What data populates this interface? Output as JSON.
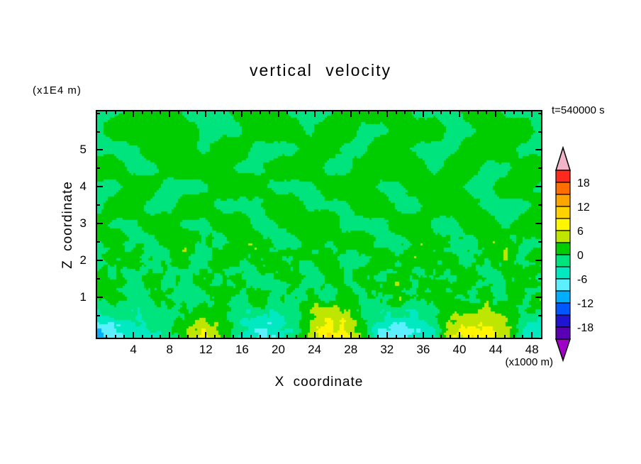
{
  "chart_data": {
    "type": "heatmap",
    "title": "vertical velocity",
    "time_label": "t=540000 s",
    "xlabel": "X coordinate",
    "ylabel": "Z coordinate",
    "x_units": "(x1000 m)",
    "y_units": "(x1E4 m)",
    "x_range": [
      0,
      49
    ],
    "z_range": [
      -0.1,
      6.05
    ],
    "x_ticks_major": [
      4,
      8,
      12,
      16,
      20,
      24,
      28,
      32,
      36,
      40,
      44,
      48
    ],
    "x_tick_minor_step": 1,
    "z_ticks_major": [
      1,
      2,
      3,
      4,
      5
    ],
    "z_tick_minor_step": 0.5,
    "levels_step": 3,
    "level_max": 21,
    "colorbar_labels": [
      18,
      12,
      6,
      0,
      -6,
      -12,
      -18
    ],
    "colors_top_to_bottom": [
      "#ff2a1e",
      "#ff6e00",
      "#ffa500",
      "#ffd300",
      "#fff600",
      "#bfe600",
      "#00cd00",
      "#00e47d",
      "#00e9c0",
      "#5cefff",
      "#00aeff",
      "#0057ff",
      "#1e14d2",
      "#5a00b4"
    ],
    "cap_top_color": "#f2b4c8",
    "cap_bottom_color": "#a000c8",
    "grid_x_range": [
      0,
      50
    ],
    "grid_z_range": [
      6,
      0
    ],
    "grid": [
      [
        -1,
        -1,
        2,
        2,
        2,
        -1,
        -1,
        -1,
        2,
        2,
        2,
        -1,
        -1,
        -1,
        2,
        2,
        2,
        2,
        -1,
        -1,
        -1,
        2,
        2,
        -1,
        -1,
        -1
      ],
      [
        -1,
        2,
        2,
        2,
        2,
        2,
        -1,
        -1,
        -1,
        2,
        2,
        2,
        -1,
        2,
        2,
        -1,
        -1,
        2,
        2,
        2,
        -1,
        -1,
        2,
        2,
        2,
        -1
      ],
      [
        -1,
        -1,
        -1,
        2,
        2,
        2,
        -1,
        2,
        2,
        -1,
        -1,
        -1,
        2,
        2,
        -1,
        -1,
        2,
        2,
        -1,
        -1,
        -1,
        2,
        2,
        2,
        -1,
        -1
      ],
      [
        2,
        2,
        -1,
        -1,
        2,
        2,
        2,
        2,
        -1,
        -1,
        2,
        2,
        2,
        -1,
        -1,
        2,
        2,
        2,
        2,
        -1,
        2,
        2,
        -1,
        -1,
        2,
        2
      ],
      [
        -1,
        -1,
        2,
        2,
        -1,
        -1,
        -1,
        2,
        2,
        2,
        -1,
        -1,
        -1,
        2,
        2,
        2,
        -1,
        -1,
        2,
        2,
        2,
        -1,
        -1,
        2,
        2,
        -1
      ],
      [
        -1,
        2,
        2,
        -1,
        -1,
        2,
        2,
        -1,
        -1,
        -1,
        2,
        2,
        -1,
        -1,
        -1,
        2,
        2,
        -1,
        -1,
        2,
        2,
        2,
        -1,
        -1,
        -1,
        2
      ],
      [
        2,
        -1,
        -1,
        2,
        2,
        -1,
        -1,
        2,
        2,
        -1,
        -1,
        2,
        2,
        2,
        -1,
        -1,
        -1,
        2,
        2,
        -1,
        -1,
        2,
        2,
        -1,
        2,
        2
      ],
      [
        -1,
        2,
        -1,
        -1,
        2,
        2,
        -1,
        -1,
        2,
        2,
        -1,
        -1,
        2,
        -1,
        2,
        2,
        -1,
        -1,
        2,
        2,
        -1,
        -1,
        2,
        2,
        -1,
        -1
      ],
      [
        -1,
        -1,
        2,
        -1,
        -1,
        2,
        -1,
        2,
        -1,
        2,
        2,
        -1,
        -1,
        2,
        -1,
        -1,
        2,
        -1,
        2,
        -1,
        2,
        -1,
        -1,
        2,
        -1,
        2
      ],
      [
        2,
        -1,
        -1,
        2,
        -1,
        -1,
        2,
        -1,
        2,
        -1,
        -1,
        2,
        -1,
        2,
        -1,
        2,
        -1,
        2,
        -1,
        2,
        -1,
        2,
        -1,
        -1,
        2,
        -1
      ],
      [
        -1,
        2,
        -1,
        -1,
        2,
        -1,
        -1,
        2,
        -1,
        2,
        -1,
        -1,
        2,
        -1,
        2,
        -1,
        -1,
        2,
        -1,
        -1,
        2,
        -1,
        2,
        -1,
        -1,
        2
      ],
      [
        -5,
        -4,
        -3,
        -2,
        -1,
        2,
        4,
        1,
        -2,
        -4,
        -4,
        -1,
        3,
        6,
        5,
        1,
        -4,
        -5,
        -4,
        -2,
        3,
        5,
        5,
        3,
        -2,
        -4
      ],
      [
        -13,
        -7,
        -5,
        -4,
        -2,
        3,
        6,
        2,
        -3,
        -6,
        -6,
        -2,
        5,
        9,
        7,
        2,
        -7,
        -8,
        -6,
        -3,
        5,
        8,
        8,
        5,
        -4,
        -6
      ]
    ]
  }
}
